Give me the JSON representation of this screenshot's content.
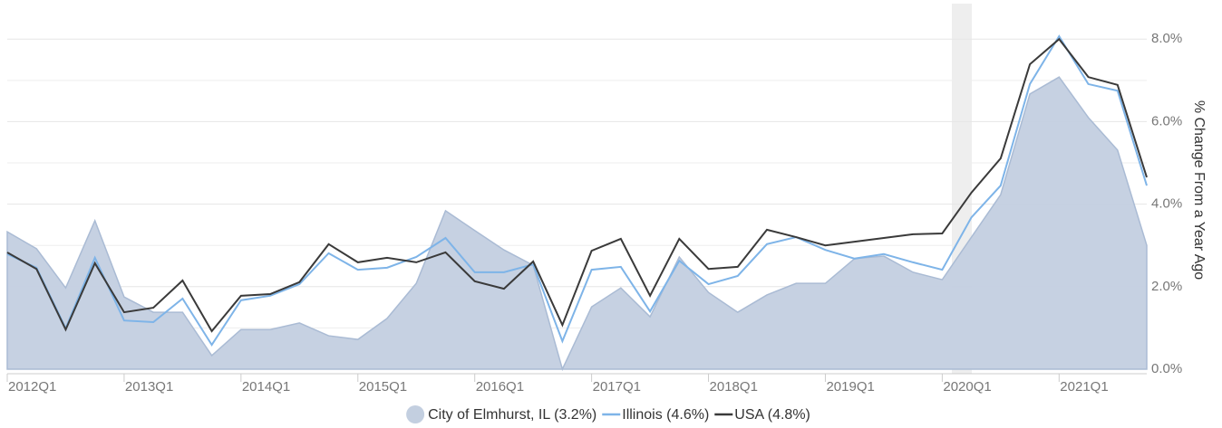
{
  "chart_data": {
    "type": "line",
    "y_label": "% Change From a Year Ago",
    "categories": [
      "2012Q1",
      null,
      null,
      null,
      "2013Q1",
      null,
      null,
      null,
      "2014Q1",
      null,
      null,
      null,
      "2015Q1",
      null,
      null,
      null,
      "2016Q1",
      null,
      null,
      null,
      "2017Q1",
      null,
      null,
      null,
      "2018Q1",
      null,
      null,
      null,
      "2019Q1",
      null,
      null,
      null,
      "2020Q1",
      null,
      null,
      null,
      "2021Q1",
      null,
      null,
      null
    ],
    "series": [
      {
        "name": "City of Elmhurst, IL (3.2%)",
        "style": "area",
        "color": "#c3cfe0",
        "values": [
          3.33,
          2.92,
          1.97,
          3.6,
          1.75,
          1.38,
          1.38,
          0.33,
          0.96,
          0.96,
          1.12,
          0.81,
          0.72,
          1.23,
          2.08,
          3.84,
          3.36,
          2.89,
          2.52,
          0.0,
          1.51,
          1.97,
          1.27,
          2.72,
          1.86,
          1.38,
          1.8,
          2.08,
          2.08,
          2.68,
          2.74,
          2.35,
          2.17,
          3.2,
          4.23,
          6.67,
          7.08,
          6.1,
          5.31,
          3.0
        ]
      },
      {
        "name": "Illinois (4.6%)",
        "style": "line",
        "color": "#7eb4e8",
        "values": [
          2.79,
          2.46,
          0.99,
          2.7,
          1.18,
          1.14,
          1.71,
          0.59,
          1.67,
          1.78,
          2.06,
          2.81,
          2.41,
          2.46,
          2.72,
          3.18,
          2.35,
          2.35,
          2.54,
          0.68,
          2.41,
          2.48,
          1.4,
          2.63,
          2.06,
          2.26,
          3.03,
          3.2,
          2.89,
          2.68,
          2.79,
          2.59,
          2.41,
          3.68,
          4.45,
          6.91,
          8.07,
          6.91,
          6.75,
          4.45
        ]
      },
      {
        "name": "USA (4.8%)",
        "style": "line",
        "color": "#3a3a3a",
        "values": [
          2.83,
          2.43,
          0.96,
          2.57,
          1.38,
          1.49,
          2.15,
          0.92,
          1.78,
          1.82,
          2.11,
          3.03,
          2.59,
          2.7,
          2.59,
          2.83,
          2.13,
          1.95,
          2.61,
          1.07,
          2.87,
          3.16,
          1.78,
          3.16,
          2.43,
          2.48,
          3.38,
          3.2,
          3.0,
          3.09,
          3.18,
          3.27,
          3.29,
          4.28,
          5.11,
          7.39,
          8.0,
          7.08,
          6.89,
          4.65
        ]
      }
    ],
    "ylim": [
      0,
      8.86
    ],
    "yticks": [
      {
        "value": 0,
        "label": "0.0%"
      },
      {
        "value": 2,
        "label": "2.0%"
      },
      {
        "value": 4,
        "label": "4.0%"
      },
      {
        "value": 6,
        "label": "6.0%"
      },
      {
        "value": 8,
        "label": "8.0%"
      }
    ],
    "minor_yticks": [
      1,
      3,
      5,
      7
    ],
    "grid": true
  }
}
